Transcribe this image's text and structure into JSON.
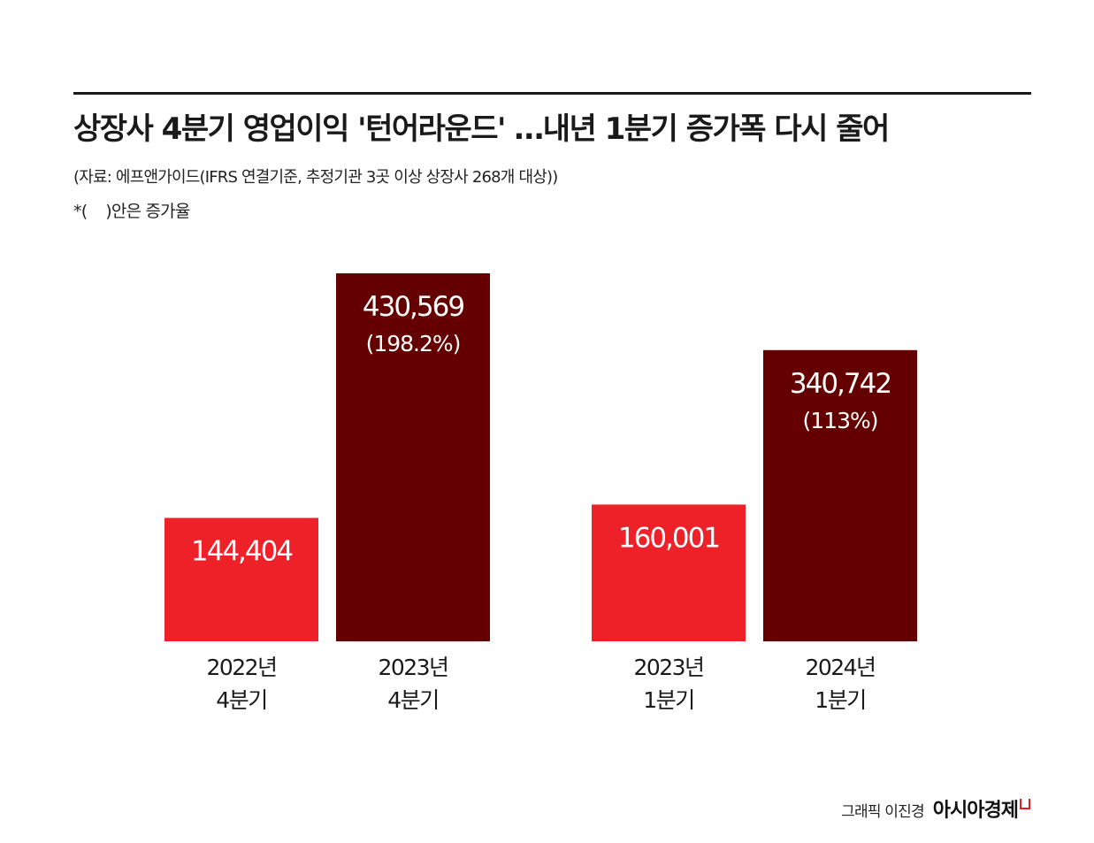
{
  "header": {
    "title": "상장사 4분기 영업이익 '턴어라운드' …내년 1분기 증가폭 다시 줄어",
    "source": "(자료: 에프앤가이드(IFRS 연결기준, 추정기관 3곳 이상 상장사 268개 대상))",
    "note": "*(    )안은 증가율"
  },
  "footer": {
    "credit": "그래픽 이진경",
    "brand": "아시아경제"
  },
  "colors": {
    "prior": "#ee2028",
    "current": "#650000",
    "text_on_bar": "#ffffff",
    "rule": "#1a1a1a"
  },
  "chart_data": {
    "type": "bar",
    "title": "상장사 4분기 영업이익 '턴어라운드' …내년 1분기 증가폭 다시 줄어",
    "xlabel": "",
    "ylabel": "",
    "ylim": [
      0,
      430569
    ],
    "grid": false,
    "legend": "none",
    "groups": [
      {
        "bars": [
          {
            "label_line1": "2022년",
            "label_line2": "4분기",
            "value": 144404,
            "value_label": "144,404",
            "growth_label": "",
            "style": "prior"
          },
          {
            "label_line1": "2023년",
            "label_line2": "4분기",
            "value": 430569,
            "value_label": "430,569",
            "growth_label": "(198.2%)",
            "style": "current"
          }
        ]
      },
      {
        "bars": [
          {
            "label_line1": "2023년",
            "label_line2": "1분기",
            "value": 160001,
            "value_label": "160,001",
            "growth_label": "",
            "style": "prior"
          },
          {
            "label_line1": "2024년",
            "label_line2": "1분기",
            "value": 340742,
            "value_label": "340,742",
            "growth_label": "(113%)",
            "style": "current"
          }
        ]
      }
    ]
  }
}
